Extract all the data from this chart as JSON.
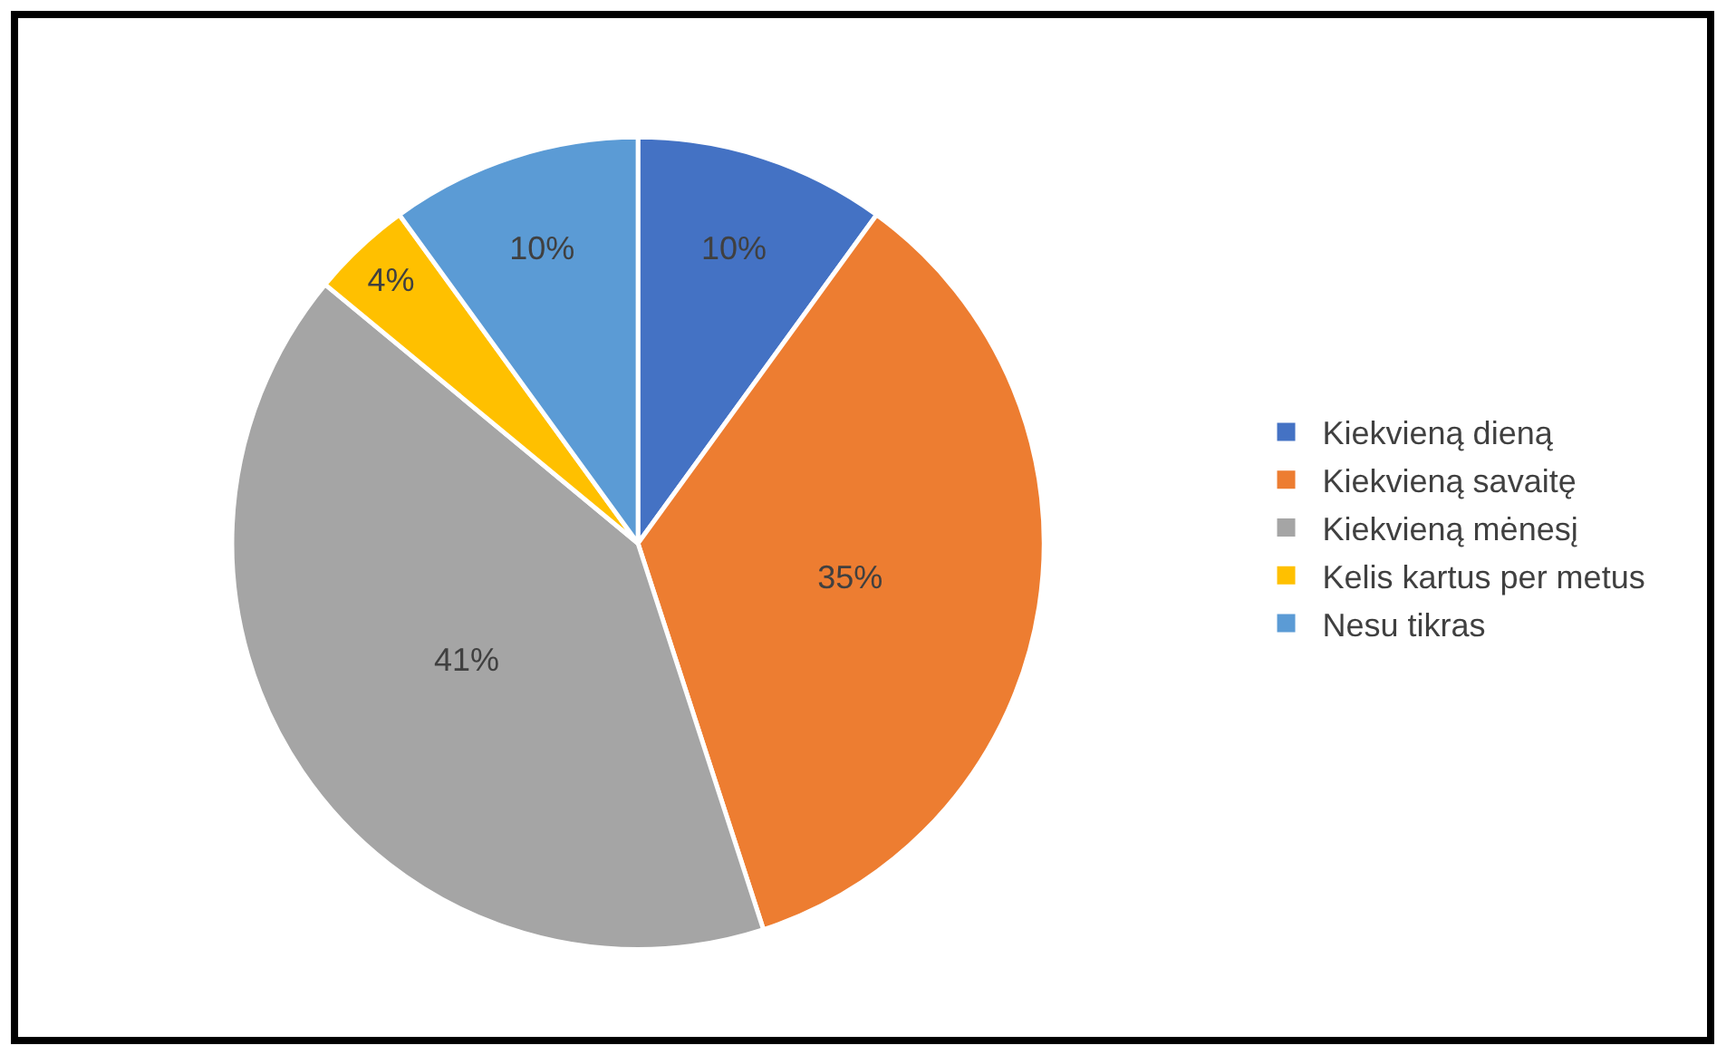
{
  "chart_data": {
    "type": "pie",
    "categories": [
      "Kiekvieną dieną",
      "Kiekvieną savaitę",
      "Kiekvieną mėnesį",
      "Kelis kartus per metus",
      "Nesu tikras"
    ],
    "values": [
      10,
      35,
      41,
      4,
      10
    ],
    "value_labels": [
      "10%",
      "35%",
      "41%",
      "4%",
      "10%"
    ],
    "colors": [
      "#4472c4",
      "#ed7d31",
      "#a5a5a5",
      "#ffc000",
      "#5b9bd5"
    ],
    "legend": "right"
  }
}
